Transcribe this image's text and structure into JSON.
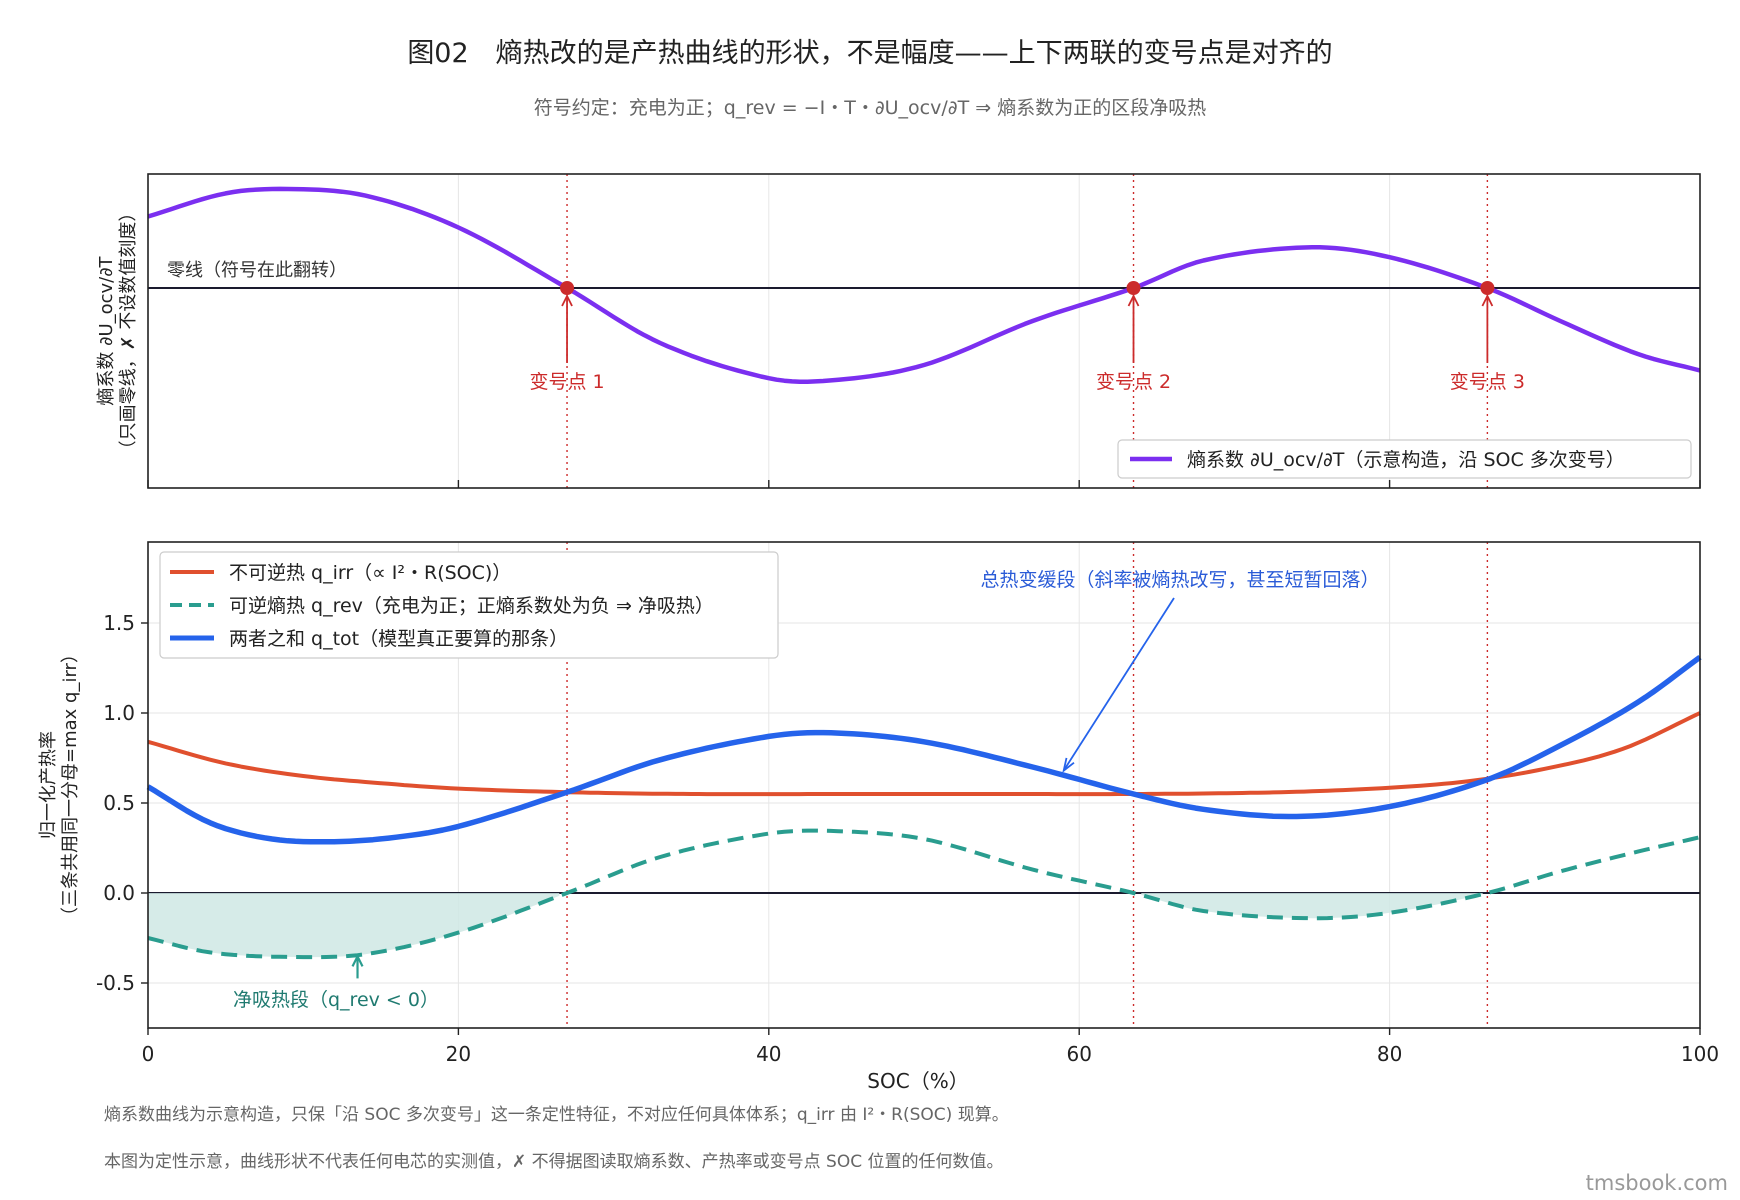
{
  "title": "图02　熵热改的是产热曲线的形状，不是幅度——上下两联的变号点是对齐的",
  "subtitle": "符号约定：充电为正；q_rev = −I・T・∂U_ocv/∂T ⇒ 熵系数为正的区段净吸热",
  "footnotes": [
    "熵系数曲线为示意构造，只保「沿 SOC 多次变号」这一条定性特征，不对应任何具体体系；q_irr 由 I²・R(SOC) 现算。",
    "本图为定性示意，曲线形状不代表任何电芯的实测值，✗ 不得据图读取熵系数、产热率或变号点 SOC 位置的任何数值。"
  ],
  "watermark": "tmsbook.com",
  "colors": {
    "entropy": "#7b2ff0",
    "q_irr": "#e0502e",
    "q_rev": "#2a9d8f",
    "q_tot": "#2563eb",
    "sign_change": "#cc2b2b",
    "fill": "#cfe8e4"
  },
  "chart_data": [
    {
      "type": "line",
      "panel": "top",
      "ylabel_lines": [
        "熵系数 ∂U_ocv/∂T",
        "（只画零线，✗ 不设数值刻度）"
      ],
      "zero_line_label": "零线（符号在此翻转）",
      "xlim": [
        0,
        100
      ],
      "y_ticks": "none",
      "grid": true,
      "legend_position": "lower-right",
      "series": [
        {
          "name": "熵系数 ∂U_ocv/∂T（示意构造，沿 SOC 多次变号）",
          "color_key": "entropy",
          "x": [
            0,
            5,
            9,
            14,
            20,
            27,
            33,
            40,
            44,
            50,
            57,
            63.5,
            68,
            75,
            80,
            86.3,
            91,
            96,
            100
          ],
          "y": [
            0.65,
            0.86,
            0.9,
            0.84,
            0.55,
            0.0,
            -0.5,
            -0.82,
            -0.84,
            -0.7,
            -0.3,
            0.0,
            0.25,
            0.37,
            0.28,
            0.0,
            -0.3,
            -0.6,
            -0.75
          ]
        }
      ],
      "sign_change_points": [
        {
          "x": 27,
          "label": "变号点 1"
        },
        {
          "x": 63.5,
          "label": "变号点 2"
        },
        {
          "x": 86.3,
          "label": "变号点 3"
        }
      ]
    },
    {
      "type": "line",
      "panel": "bottom",
      "xlabel": "SOC（%）",
      "ylabel_lines": [
        "归一化产热率",
        "（三条共用同一分母=max q_irr）"
      ],
      "xlim": [
        0,
        100
      ],
      "ylim": [
        -0.75,
        1.95
      ],
      "x_ticks": [
        0,
        20,
        40,
        60,
        80,
        100
      ],
      "y_ticks": [
        -0.5,
        0.0,
        0.5,
        1.0,
        1.5
      ],
      "y_tick_labels": [
        "-0.5",
        "0.0",
        "0.5",
        "1.0",
        "1.5"
      ],
      "grid": true,
      "legend_position": "top-left",
      "series": [
        {
          "name": "不可逆热 q_irr（∝ I²・R(SOC)）",
          "color_key": "q_irr",
          "style": "solid",
          "x": [
            0,
            5,
            10,
            15,
            20,
            27,
            35,
            45,
            55,
            63.5,
            70,
            75,
            80,
            85,
            90,
            95,
            100
          ],
          "y": [
            0.84,
            0.72,
            0.65,
            0.61,
            0.58,
            0.56,
            0.55,
            0.55,
            0.55,
            0.55,
            0.555,
            0.565,
            0.585,
            0.62,
            0.69,
            0.8,
            1.0
          ]
        },
        {
          "name": "可逆熵热 q_rev（充电为正；正熵系数处为负 ⇒ 净吸热）",
          "color_key": "q_rev",
          "style": "dashed",
          "x": [
            0,
            4,
            9,
            14,
            20,
            27,
            33,
            40,
            44,
            50,
            57,
            63.5,
            68,
            75,
            80,
            86.3,
            91,
            96,
            100
          ],
          "y": [
            -0.25,
            -0.33,
            -0.355,
            -0.34,
            -0.22,
            0.0,
            0.2,
            0.33,
            0.345,
            0.3,
            0.13,
            0.0,
            -0.1,
            -0.14,
            -0.11,
            0.0,
            0.12,
            0.23,
            0.31
          ]
        },
        {
          "name": "两者之和 q_tot（模型真正要算的那条）",
          "color_key": "q_tot",
          "style": "solid",
          "x": [
            0,
            4,
            8,
            12,
            16,
            20,
            27,
            33,
            40,
            44,
            50,
            57,
            63.5,
            68,
            74,
            80,
            86.3,
            91,
            96,
            100
          ],
          "y": [
            0.59,
            0.39,
            0.3,
            0.285,
            0.31,
            0.37,
            0.56,
            0.74,
            0.87,
            0.89,
            0.84,
            0.7,
            0.55,
            0.465,
            0.425,
            0.48,
            0.63,
            0.82,
            1.06,
            1.31
          ]
        }
      ],
      "shaded_region": "q_rev < 0 区段填充（净吸热）",
      "sign_change_lines_x": [
        27,
        63.5,
        86.3
      ],
      "annotations": [
        {
          "text": "净吸热段（q_rev < 0）",
          "arrow_to": {
            "x": 13.5,
            "y": -0.33
          },
          "color_key": "q_rev"
        },
        {
          "text": "总热变缓段（斜率被熵热改写，甚至短暂回落）",
          "arrow_to": {
            "x": 59,
            "y": 0.68
          },
          "color_key": "q_tot"
        }
      ]
    }
  ]
}
